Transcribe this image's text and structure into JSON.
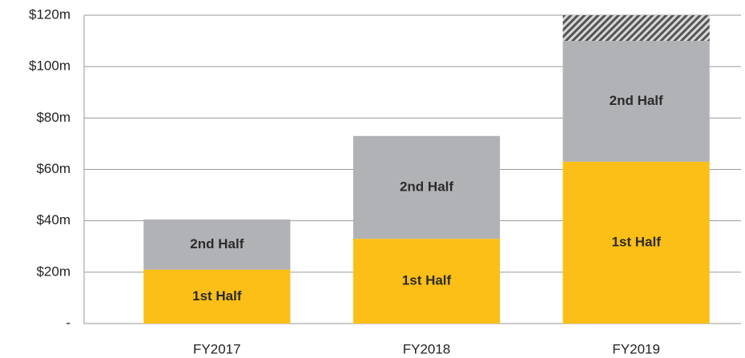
{
  "chart_data": {
    "type": "stacked_bar",
    "categories": [
      "FY2017",
      "FY2018",
      "FY2019"
    ],
    "series": [
      {
        "name": "1st Half",
        "color": "#fbbf17",
        "values": [
          21,
          33,
          63
        ]
      },
      {
        "name": "2nd Half",
        "color": "#b1b2b5",
        "values": [
          19.5,
          40,
          47
        ]
      },
      {
        "color": "#555555",
        "hatch": true,
        "values": [
          null,
          null,
          10
        ]
      }
    ],
    "ylim": [
      0,
      120
    ],
    "yticks": [
      {
        "value": 0,
        "label": "-"
      },
      {
        "value": 20,
        "label": "$20m"
      },
      {
        "value": 40,
        "label": "$40m"
      },
      {
        "value": 60,
        "label": "$60m"
      },
      {
        "value": 80,
        "label": "$80m"
      },
      {
        "value": 100,
        "label": "$100m"
      },
      {
        "value": 120,
        "label": "$120m"
      }
    ],
    "grid": true
  }
}
